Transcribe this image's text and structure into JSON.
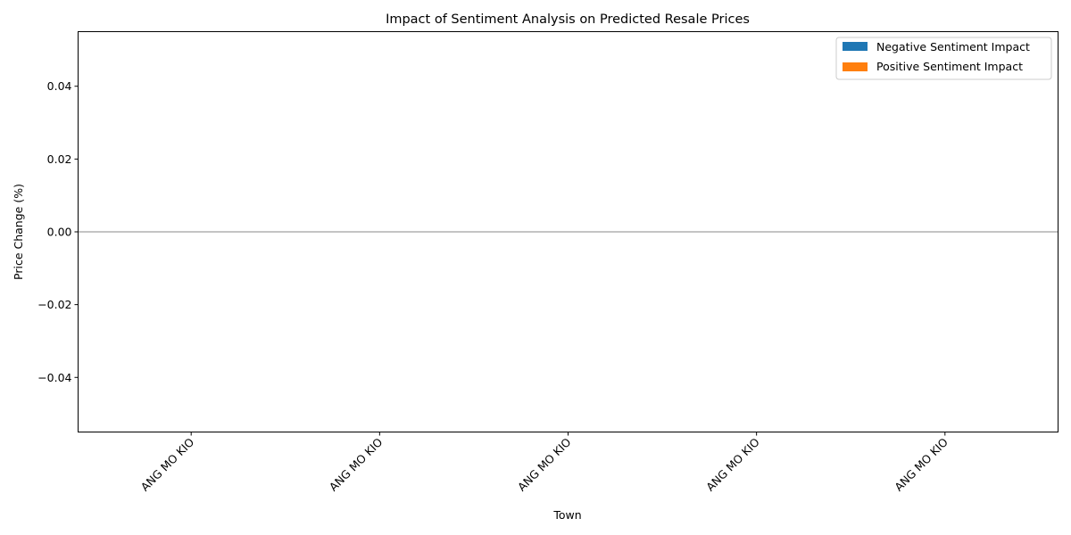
{
  "chart_data": {
    "type": "bar",
    "title": "Impact of Sentiment Analysis on Predicted Resale Prices",
    "xlabel": "Town",
    "ylabel": "Price Change (%)",
    "categories": [
      "ANG MO KIO",
      "ANG MO KIO",
      "ANG MO KIO",
      "ANG MO KIO",
      "ANG MO KIO"
    ],
    "series": [
      {
        "name": "Negative Sentiment Impact",
        "values": [
          0,
          0,
          0,
          0,
          0
        ],
        "color": "#1f77b4"
      },
      {
        "name": "Positive Sentiment Impact",
        "values": [
          0,
          0,
          0,
          0,
          0
        ],
        "color": "#ff7f0e"
      }
    ],
    "ylim": [
      -0.055,
      0.055
    ],
    "yticks": [
      -0.04,
      -0.02,
      0.0,
      0.02,
      0.04
    ],
    "ytick_labels": [
      "−0.04",
      "−0.02",
      "0.00",
      "0.02",
      "0.04"
    ],
    "reference_line": {
      "y": 0,
      "color": "#b0b0b0"
    },
    "grid": false,
    "legend_position": "top-right"
  }
}
